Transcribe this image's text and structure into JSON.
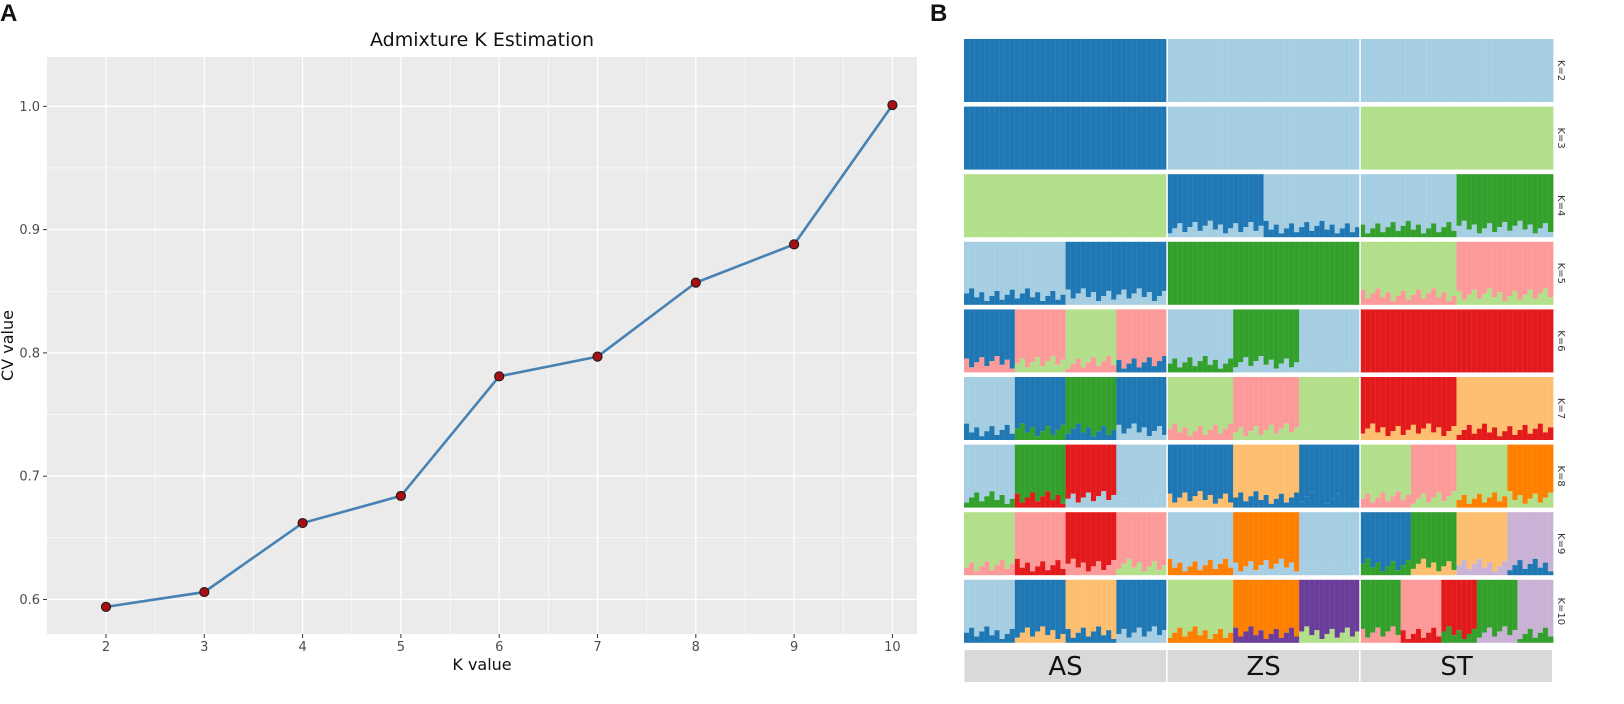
{
  "panels": {
    "a_label": "A",
    "b_label": "B"
  },
  "chart_data": [
    {
      "type": "line",
      "title": "Admixture K Estimation",
      "xlabel": "K value",
      "ylabel": "CV value",
      "x": [
        2,
        3,
        4,
        5,
        6,
        7,
        8,
        9,
        10
      ],
      "y": [
        0.594,
        0.606,
        0.662,
        0.684,
        0.781,
        0.797,
        0.857,
        0.888,
        1.001
      ],
      "xlim": [
        1.4,
        10.25
      ],
      "ylim": [
        0.572,
        1.04
      ],
      "xticks": [
        2,
        3,
        4,
        5,
        6,
        7,
        8,
        9,
        10
      ],
      "yticks": [
        0.6,
        0.7,
        0.8,
        0.9,
        1.0
      ],
      "ytick_labels": [
        "0.6",
        "0.7",
        "0.8",
        "0.9",
        "1.0"
      ],
      "grid": true,
      "line_color": "#4682b4",
      "marker_color": "#a50f15",
      "background_color": "#ebebeb"
    },
    {
      "type": "admixture_barplot",
      "groups": [
        "AS",
        "ZS",
        "ST"
      ],
      "group_sizes": [
        40,
        38,
        38
      ],
      "rows": [
        "K=2",
        "K=3",
        "K=4",
        "K=5",
        "K=6",
        "K=7",
        "K=8",
        "K=9",
        "K=10"
      ],
      "palette": {
        "dblue": "#1f78b4",
        "lblue": "#a6cee3",
        "lgreen": "#b2df8a",
        "dgreen": "#33a02c",
        "pink": "#fb9a99",
        "red": "#e31a1c",
        "lorange": "#fdbf6f",
        "orange": "#ff7f00",
        "lpurple": "#cab2d6",
        "dpurple": "#6a3d9a"
      },
      "row_profiles": [
        [
          [
            "dblue"
          ],
          [
            "lblue"
          ],
          [
            "lblue"
          ]
        ],
        [
          [
            "dblue"
          ],
          [
            "lblue"
          ],
          [
            "lgreen"
          ]
        ],
        [
          [
            "lgreen"
          ],
          [
            "dblue",
            "lblue"
          ],
          [
            "lblue",
            "dgreen"
          ]
        ],
        [
          [
            "lblue",
            "dblue"
          ],
          [
            "dgreen"
          ],
          [
            "lgreen",
            "pink"
          ]
        ],
        [
          [
            "dblue",
            "pink",
            "lgreen",
            "pink"
          ],
          [
            "lblue",
            "dgreen",
            "lblue"
          ],
          [
            "red"
          ]
        ],
        [
          [
            "lblue",
            "dblue",
            "dgreen",
            "dblue"
          ],
          [
            "lgreen",
            "pink",
            "lgreen"
          ],
          [
            "red",
            "lorange"
          ]
        ],
        [
          [
            "lblue",
            "dgreen",
            "red",
            "lblue"
          ],
          [
            "dblue",
            "lorange",
            "dblue"
          ],
          [
            "lgreen",
            "pink",
            "lgreen",
            "orange"
          ]
        ],
        [
          [
            "lgreen",
            "pink",
            "red",
            "pink"
          ],
          [
            "lblue",
            "orange",
            "lblue"
          ],
          [
            "dblue",
            "dgreen",
            "lorange",
            "lpurple"
          ]
        ],
        [
          [
            "lblue",
            "dblue",
            "lorange",
            "dblue"
          ],
          [
            "lgreen",
            "orange",
            "dpurple"
          ],
          [
            "dgreen",
            "pink",
            "red",
            "dgreen",
            "lpurple"
          ]
        ]
      ]
    }
  ]
}
